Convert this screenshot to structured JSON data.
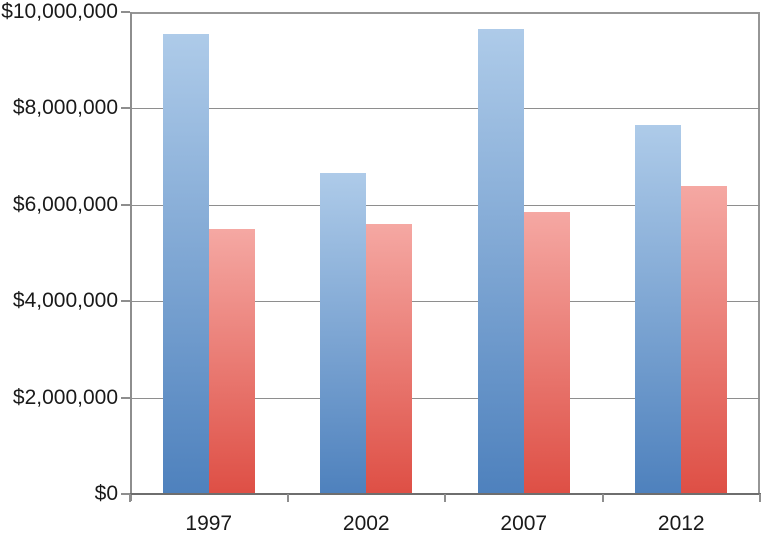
{
  "chart_data": {
    "type": "bar",
    "title": "",
    "xlabel": "",
    "ylabel": "",
    "categories": [
      "1997",
      "2002",
      "2007",
      "2012"
    ],
    "series": [
      {
        "name": "blue-series",
        "color_top": "#aecbe9",
        "color_bottom": "#4e81bd",
        "values": [
          9550000,
          6650000,
          9650000,
          7650000
        ]
      },
      {
        "name": "red-series",
        "color_top": "#f5a8a3",
        "color_bottom": "#de4f45",
        "values": [
          5500000,
          5600000,
          5850000,
          6400000
        ]
      }
    ],
    "y_axis": {
      "min": 0,
      "max": 10000000,
      "tick_interval": 2000000,
      "tick_labels": [
        "$0",
        "$2,000,000",
        "$4,000,000",
        "$6,000,000",
        "$8,000,000",
        "$10,000,000"
      ],
      "format": "currency-usd"
    },
    "x_axis": {
      "tick_labels": [
        "1997",
        "2002",
        "2007",
        "2012"
      ]
    },
    "grid": true,
    "legend": "none",
    "plot_border_color": "#969696",
    "gridline_color": "#8e8e8e",
    "background_color": "#ffffff"
  }
}
